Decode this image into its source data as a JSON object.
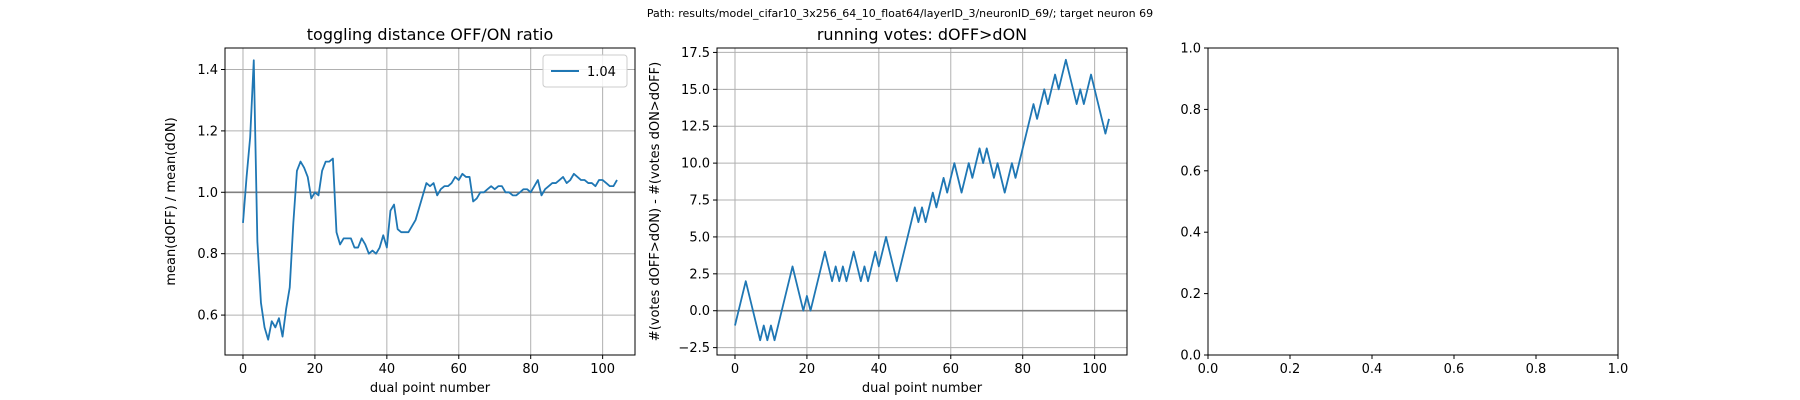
{
  "figure": {
    "suptitle": "Path: results/model_cifar10_3x256_64_10_float64/layerID_3/neuronID_69/; target neuron 69"
  },
  "chart_data": [
    {
      "type": "line",
      "title": "toggling distance OFF/ON ratio",
      "xlabel": "dual point number",
      "ylabel": "mean(dOFF) / mean(dON)",
      "xlim": [
        -5,
        109
      ],
      "ylim": [
        0.47,
        1.47
      ],
      "xticks": [
        0,
        20,
        40,
        60,
        80,
        100
      ],
      "yticks": [
        0.6,
        0.8,
        1.0,
        1.2,
        1.4
      ],
      "ytick_labels": [
        "0.6",
        "0.8",
        "1.0",
        "1.2",
        "1.4"
      ],
      "grid": true,
      "hline": 1.0,
      "legend": {
        "position": "top-right",
        "entries": [
          "1.04"
        ]
      },
      "series": [
        {
          "name": "1.04",
          "color": "#1f77b4",
          "x_start": 0,
          "values": [
            0.9,
            1.05,
            1.18,
            1.43,
            0.84,
            0.64,
            0.56,
            0.52,
            0.58,
            0.56,
            0.59,
            0.53,
            0.62,
            0.69,
            0.9,
            1.07,
            1.1,
            1.08,
            1.05,
            0.98,
            1.0,
            0.99,
            1.07,
            1.1,
            1.1,
            1.11,
            0.87,
            0.83,
            0.85,
            0.85,
            0.85,
            0.82,
            0.82,
            0.85,
            0.83,
            0.8,
            0.81,
            0.8,
            0.82,
            0.86,
            0.82,
            0.94,
            0.96,
            0.88,
            0.87,
            0.87,
            0.87,
            0.89,
            0.91,
            0.95,
            0.99,
            1.03,
            1.02,
            1.03,
            0.99,
            1.01,
            1.02,
            1.02,
            1.03,
            1.05,
            1.04,
            1.06,
            1.05,
            1.05,
            0.97,
            0.98,
            1.0,
            1.0,
            1.01,
            1.02,
            1.01,
            1.02,
            1.02,
            1.0,
            1.0,
            0.99,
            0.99,
            1.0,
            1.01,
            1.01,
            1.0,
            1.02,
            1.04,
            0.99,
            1.01,
            1.02,
            1.03,
            1.03,
            1.04,
            1.05,
            1.03,
            1.04,
            1.06,
            1.05,
            1.04,
            1.04,
            1.03,
            1.03,
            1.02,
            1.04,
            1.04,
            1.03,
            1.02,
            1.02,
            1.04
          ]
        }
      ]
    },
    {
      "type": "line",
      "title": "running votes: dOFF>dON",
      "xlabel": "dual point number",
      "ylabel": "#(votes dOFF>dON) - #(votes dON>dOFF)",
      "xlim": [
        -5,
        109
      ],
      "ylim": [
        -3,
        17.8
      ],
      "xticks": [
        0,
        20,
        40,
        60,
        80,
        100
      ],
      "yticks": [
        -2.5,
        0,
        2.5,
        5,
        7.5,
        10,
        12.5,
        15,
        17.5
      ],
      "ytick_labels": [
        "−2.5",
        "0.0",
        "2.5",
        "5.0",
        "7.5",
        "10.0",
        "12.5",
        "15.0",
        "17.5"
      ],
      "grid": true,
      "hline": 0,
      "series": [
        {
          "color": "#1f77b4",
          "x_start": 0,
          "values": [
            -1,
            0,
            1,
            2,
            1,
            0,
            -1,
            -2,
            -1,
            -2,
            -1,
            -2,
            -1,
            0,
            1,
            2,
            3,
            2,
            1,
            0,
            1,
            0,
            1,
            2,
            3,
            4,
            3,
            2,
            3,
            2,
            3,
            2,
            3,
            4,
            3,
            2,
            3,
            2,
            3,
            4,
            3,
            4,
            5,
            4,
            3,
            2,
            3,
            4,
            5,
            6,
            7,
            6,
            7,
            6,
            7,
            8,
            7,
            8,
            9,
            8,
            9,
            10,
            9,
            8,
            9,
            10,
            9,
            10,
            11,
            10,
            11,
            10,
            9,
            10,
            9,
            8,
            9,
            10,
            9,
            10,
            11,
            12,
            13,
            14,
            13,
            14,
            15,
            14,
            15,
            16,
            15,
            16,
            17,
            16,
            15,
            14,
            15,
            14,
            15,
            16,
            15,
            14,
            13,
            12,
            13
          ]
        }
      ]
    },
    {
      "type": "line",
      "title": "",
      "xlim": [
        0,
        1
      ],
      "ylim": [
        0,
        1
      ],
      "xticks": [
        0,
        0.2,
        0.4,
        0.6,
        0.8,
        1.0
      ],
      "yticks": [
        0,
        0.2,
        0.4,
        0.6,
        0.8,
        1.0
      ],
      "xtick_labels": [
        "0.0",
        "0.2",
        "0.4",
        "0.6",
        "0.8",
        "1.0"
      ],
      "ytick_labels": [
        "0.0",
        "0.2",
        "0.4",
        "0.6",
        "0.8",
        "1.0"
      ],
      "grid": false,
      "series": []
    }
  ]
}
